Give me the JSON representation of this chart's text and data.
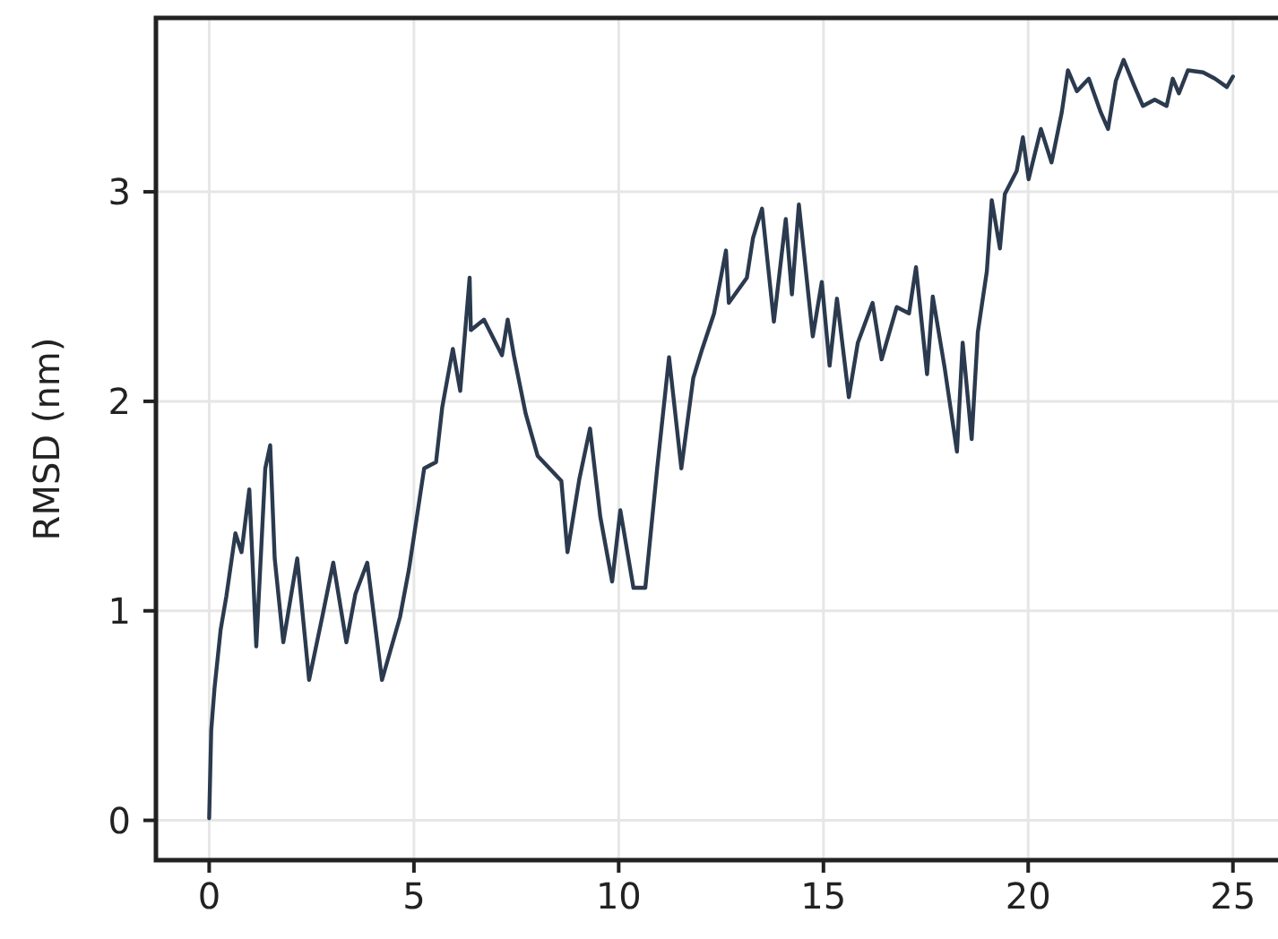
{
  "chart_data": {
    "type": "line",
    "ylabel": "RMSD (nm)",
    "xlim": [
      -1.3,
      26.1
    ],
    "ylim": [
      -0.19,
      3.83
    ],
    "xticks": [
      0,
      5,
      10,
      15,
      20,
      25
    ],
    "yticks": [
      0,
      1,
      2,
      3
    ],
    "grid": true,
    "marker": "none",
    "line_style": "solid",
    "series": [
      {
        "color": "#2b3a4e",
        "x": [
          0,
          0.05,
          0.13,
          0.28,
          0.42,
          0.64,
          0.79,
          0.98,
          1.15,
          1.37,
          1.49,
          1.6,
          1.81,
          2.15,
          2.44,
          2.76,
          3.03,
          3.35,
          3.57,
          3.86,
          4.22,
          4.66,
          4.88,
          5.25,
          5.54,
          5.69,
          5.95,
          6.13,
          6.36,
          6.39,
          6.71,
          7.15,
          7.29,
          7.44,
          7.73,
          8.02,
          8.6,
          8.75,
          9.04,
          9.3,
          9.55,
          9.84,
          10.04,
          10.36,
          10.65,
          10.94,
          11.23,
          11.53,
          11.82,
          12.04,
          12.33,
          12.62,
          12.69,
          13.13,
          13.28,
          13.5,
          13.79,
          14.08,
          14.23,
          14.4,
          14.74,
          14.96,
          15.15,
          15.33,
          15.62,
          15.84,
          16.2,
          16.42,
          16.79,
          17.09,
          17.26,
          17.53,
          17.67,
          17.96,
          18.26,
          18.4,
          18.62,
          18.77,
          18.99,
          19.11,
          19.31,
          19.43,
          19.72,
          19.87,
          20.01,
          20.31,
          20.57,
          20.82,
          20.97,
          21.19,
          21.48,
          21.77,
          21.95,
          22.14,
          22.33,
          22.58,
          22.8,
          23.09,
          23.38,
          23.53,
          23.68,
          23.9,
          24.27,
          24.56,
          24.85,
          25.0
        ],
        "values": [
          0.01,
          0.43,
          0.63,
          0.91,
          1.07,
          1.37,
          1.28,
          1.58,
          0.83,
          1.68,
          1.79,
          1.25,
          0.85,
          1.25,
          0.67,
          0.97,
          1.23,
          0.85,
          1.08,
          1.23,
          0.67,
          0.97,
          1.2,
          1.68,
          1.71,
          1.97,
          2.25,
          2.05,
          2.59,
          2.34,
          2.39,
          2.22,
          2.39,
          2.22,
          1.94,
          1.74,
          1.62,
          1.28,
          1.63,
          1.87,
          1.45,
          1.14,
          1.48,
          1.11,
          1.11,
          1.68,
          2.21,
          1.68,
          2.11,
          2.25,
          2.42,
          2.72,
          2.47,
          2.59,
          2.78,
          2.92,
          2.38,
          2.87,
          2.51,
          2.94,
          2.31,
          2.57,
          2.17,
          2.49,
          2.02,
          2.28,
          2.47,
          2.2,
          2.45,
          2.42,
          2.64,
          2.13,
          2.5,
          2.16,
          1.76,
          2.28,
          1.82,
          2.33,
          2.62,
          2.96,
          2.73,
          2.99,
          3.1,
          3.26,
          3.06,
          3.3,
          3.14,
          3.38,
          3.58,
          3.48,
          3.54,
          3.38,
          3.3,
          3.53,
          3.63,
          3.51,
          3.41,
          3.44,
          3.41,
          3.54,
          3.47,
          3.58,
          3.57,
          3.54,
          3.5,
          3.55
        ]
      }
    ]
  }
}
